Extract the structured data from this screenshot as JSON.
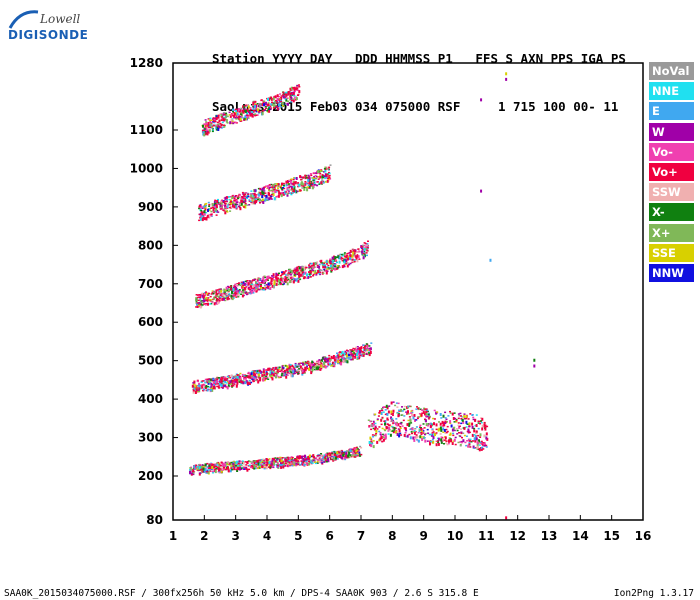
{
  "logo": {
    "top": "Lowell",
    "bottom": "DIGISONDE"
  },
  "header": {
    "line1": "Station YYYY DAY   DDD HHMMSS P1   FFS S AXN PPS IGA PS",
    "line2": "SaoLuis 2015 Feb03 034 075000 RSF     1 715 100 00- 11"
  },
  "legend": [
    {
      "label": "NoVal",
      "color": "#9a9a9a"
    },
    {
      "label": "NNE",
      "color": "#20e0f0"
    },
    {
      "label": "E",
      "color": "#40a8f0"
    },
    {
      "label": "W",
      "color": "#a000a8"
    },
    {
      "label": "Vo-",
      "color": "#f040b0"
    },
    {
      "label": "Vo+",
      "color": "#f00040"
    },
    {
      "label": "SSW",
      "color": "#f0b0b0"
    },
    {
      "label": "X-",
      "color": "#108010"
    },
    {
      "label": "X+",
      "color": "#80b858"
    },
    {
      "label": "SSE",
      "color": "#d8d000"
    },
    {
      "label": "NNW",
      "color": "#1010e0"
    }
  ],
  "footer": {
    "left": "SAA0K_2015034075000.RSF / 300fx256h 50 kHz 5.0 km / DPS-4 SAA0K 903 / 2.6 S 315.8 E",
    "right": "Ion2Png 1.3.17"
  },
  "chart_data": {
    "type": "scatter",
    "x_ticks": [
      "1",
      "2",
      "3",
      "4",
      "5",
      "6",
      "7",
      "8",
      "9",
      "10",
      "11",
      "12",
      "13",
      "14",
      "15",
      "16"
    ],
    "y_ticks": [
      "80",
      "200",
      "300",
      "400",
      "500",
      "600",
      "700",
      "800",
      "900",
      "1000",
      "1100",
      "1280"
    ],
    "xlim": [
      1,
      16
    ],
    "ylim": [
      80,
      1280
    ],
    "grid": false,
    "legend_placement": "right",
    "traces": [
      {
        "name": "F trace",
        "x": [
          1.5,
          2.5,
          3.5,
          4.5,
          5.5,
          6.5,
          7.0
        ],
        "y": [
          215,
          222,
          228,
          235,
          242,
          255,
          265
        ],
        "spread": 12
      },
      {
        "name": "2F trace",
        "x": [
          1.6,
          2.5,
          3.5,
          4.5,
          5.5,
          6.5,
          7.3
        ],
        "y": [
          430,
          440,
          455,
          470,
          485,
          510,
          530
        ],
        "spread": 15
      },
      {
        "name": "3F trace",
        "x": [
          1.7,
          2.5,
          3.5,
          4.5,
          5.5,
          6.5,
          7.2
        ],
        "y": [
          650,
          668,
          690,
          712,
          735,
          760,
          790
        ],
        "spread": 18
      },
      {
        "name": "4F trace",
        "x": [
          1.8,
          2.5,
          3.5,
          4.5,
          5.5,
          6.0
        ],
        "y": [
          880,
          898,
          920,
          945,
          968,
          985
        ],
        "spread": 20
      },
      {
        "name": "5F trace",
        "x": [
          1.9,
          2.5,
          3.5,
          4.5,
          5.0
        ],
        "y": [
          1100,
          1120,
          1150,
          1180,
          1200
        ],
        "spread": 20
      },
      {
        "name": "spread F",
        "x": [
          7.2,
          8.0,
          9.0,
          10.0,
          11.0
        ],
        "y": [
          300,
          340,
          320,
          310,
          300
        ],
        "spread": 45
      }
    ],
    "isolated_points": [
      {
        "x": 10.8,
        "y": 1185,
        "color": "#a000a8"
      },
      {
        "x": 11.6,
        "y": 1240,
        "color": "#a000a8"
      },
      {
        "x": 11.6,
        "y": 1255,
        "color": "#d8d000"
      },
      {
        "x": 10.8,
        "y": 945,
        "color": "#a000a8"
      },
      {
        "x": 11.1,
        "y": 765,
        "color": "#40a8f0"
      },
      {
        "x": 12.5,
        "y": 505,
        "color": "#108010"
      },
      {
        "x": 12.5,
        "y": 490,
        "color": "#a000a8"
      },
      {
        "x": 11.6,
        "y": 90,
        "color": "#f00040"
      }
    ]
  }
}
